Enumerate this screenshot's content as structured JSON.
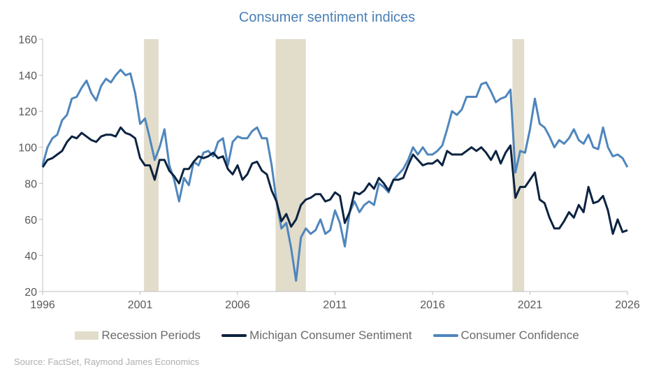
{
  "chart_data": {
    "type": "line",
    "title": "Consumer sentiment indices",
    "xlim": [
      1996,
      2026
    ],
    "ylim": [
      20,
      160
    ],
    "x_ticks": [
      "1996",
      "2001",
      "2006",
      "2011",
      "2016",
      "2021",
      "2026"
    ],
    "y_ticks": [
      "20",
      "40",
      "60",
      "80",
      "100",
      "120",
      "140",
      "160"
    ],
    "grid": false,
    "legend_position": "bottom",
    "recessions": [
      [
        2001.2,
        2001.95
      ],
      [
        2007.95,
        2009.5
      ],
      [
        2020.1,
        2020.7
      ]
    ],
    "recession_label": "Recession Periods",
    "colors": {
      "recession": "#e2dccb",
      "michigan": "#0c2340",
      "confidence": "#4f86bd",
      "title": "#4a7fb5"
    },
    "series": [
      {
        "name": "Michigan Consumer Sentiment",
        "start": 1996,
        "step": 0.25,
        "values": [
          89,
          93,
          94,
          96,
          98,
          103,
          106,
          105,
          108,
          106,
          104,
          103,
          106,
          107,
          107,
          106,
          111,
          108,
          107,
          105,
          94,
          90,
          90,
          82,
          93,
          93,
          87,
          84,
          80,
          88,
          88,
          92,
          95,
          94,
          95,
          97,
          94,
          95,
          88,
          85,
          90,
          82,
          85,
          91,
          92,
          87,
          85,
          76,
          70,
          59,
          63,
          56,
          60,
          68,
          71,
          72,
          74,
          74,
          70,
          71,
          75,
          73,
          58,
          64,
          75,
          74,
          76,
          80,
          77,
          83,
          80,
          76,
          82,
          82,
          83,
          90,
          96,
          93,
          90,
          91,
          91,
          93,
          90,
          98,
          96,
          96,
          96,
          98,
          100,
          98,
          100,
          97,
          93,
          98,
          91,
          97,
          101,
          72,
          78,
          78,
          82,
          86,
          71,
          69,
          61,
          55,
          55,
          59,
          64,
          61,
          68,
          64,
          78,
          69,
          70,
          73,
          65,
          52,
          60,
          53,
          54
        ]
      },
      {
        "name": "Consumer Confidence",
        "start": 1996,
        "step": 0.25,
        "values": [
          90,
          100,
          105,
          107,
          115,
          118,
          127,
          128,
          133,
          137,
          130,
          126,
          134,
          138,
          136,
          140,
          143,
          140,
          141,
          130,
          113,
          116,
          105,
          93,
          100,
          110,
          90,
          82,
          70,
          83,
          79,
          92,
          90,
          97,
          98,
          95,
          103,
          105,
          90,
          103,
          106,
          105,
          105,
          109,
          111,
          105,
          105,
          90,
          70,
          55,
          58,
          44,
          26,
          50,
          55,
          52,
          54,
          60,
          52,
          54,
          65,
          58,
          45,
          64,
          70,
          64,
          68,
          70,
          68,
          80,
          78,
          75,
          82,
          85,
          88,
          93,
          100,
          96,
          100,
          96,
          96,
          98,
          101,
          110,
          120,
          118,
          121,
          128,
          128,
          128,
          135,
          136,
          131,
          125,
          127,
          128,
          132,
          86,
          98,
          97,
          110,
          127,
          113,
          111,
          106,
          100,
          104,
          102,
          105,
          110,
          104,
          102,
          107,
          100,
          99,
          111,
          100,
          95,
          96,
          94,
          89
        ]
      }
    ],
    "source": "Source: FactSet, Raymond James Economics"
  }
}
